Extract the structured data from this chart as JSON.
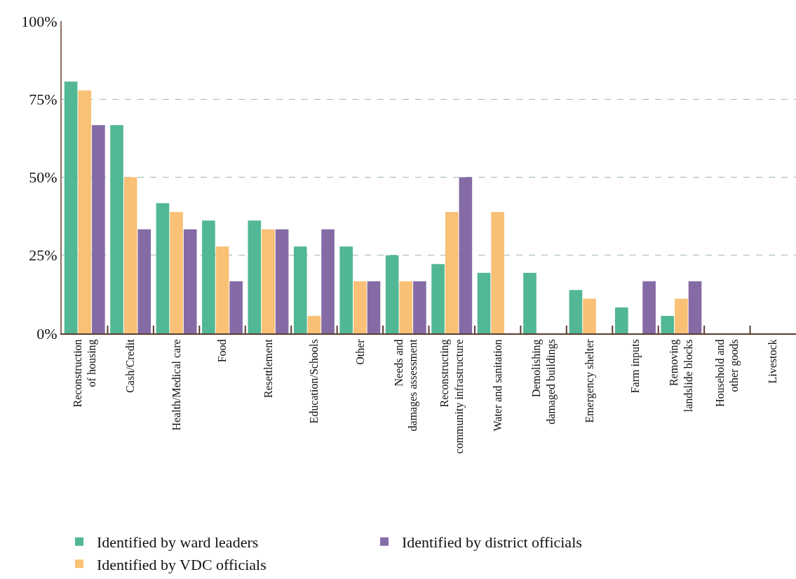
{
  "chart_data": {
    "type": "bar",
    "categories": [
      "Reconstruction\nof housing",
      "Cash/Credit",
      "Health/Medical care",
      "Food",
      "Resettlement",
      "Education/Schools",
      "Other",
      "Needs and\ndamages assessment",
      "Reconstructing\ncommunity infrastructure",
      "Water and sanitation",
      "Demolishing\ndamaged buildings",
      "Emergency shelter",
      "Farm inputs",
      "Removing\nlandslide blocks",
      "Household and\nother goods",
      "Livestock"
    ],
    "series": [
      {
        "name": "Identified by ward leaders",
        "color": "#52b794",
        "values": [
          80.6,
          66.7,
          41.7,
          36.1,
          36.1,
          27.8,
          27.8,
          25.0,
          22.2,
          19.4,
          19.4,
          13.9,
          8.3,
          5.6,
          0,
          0
        ]
      },
      {
        "name": "Identified by VDC officials",
        "color": "#f9c175",
        "values": [
          77.8,
          50.0,
          38.9,
          27.8,
          33.3,
          5.6,
          16.7,
          16.7,
          38.9,
          38.9,
          0,
          11.1,
          0,
          11.1,
          0,
          0
        ]
      },
      {
        "name": "Identified by district officials",
        "color": "#856ba6",
        "values": [
          66.7,
          33.3,
          33.3,
          16.7,
          33.3,
          33.3,
          16.7,
          16.7,
          50.0,
          0,
          0,
          0,
          16.7,
          16.7,
          0,
          0
        ]
      }
    ],
    "ylim": [
      0,
      100
    ],
    "yticks": [
      {
        "value": 0,
        "label": "0%"
      },
      {
        "value": 25,
        "label": "25%"
      },
      {
        "value": 50,
        "label": "50%"
      },
      {
        "value": 75,
        "label": "75%"
      },
      {
        "value": 100,
        "label": "100%"
      }
    ],
    "grid": "y",
    "legend": "bottom"
  }
}
